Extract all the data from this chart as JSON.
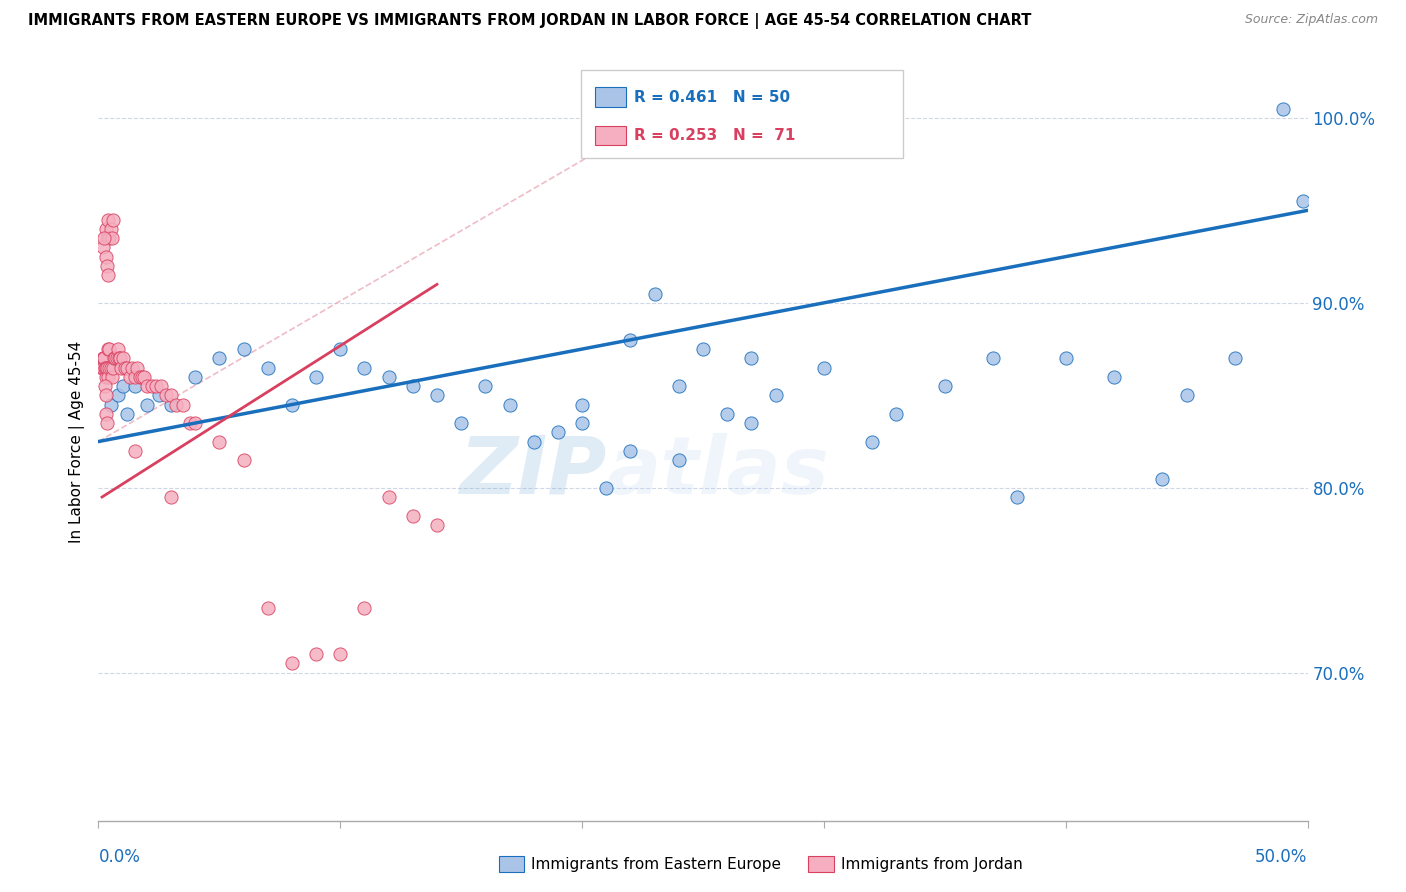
{
  "title": "IMMIGRANTS FROM EASTERN EUROPE VS IMMIGRANTS FROM JORDAN IN LABOR FORCE | AGE 45-54 CORRELATION CHART",
  "source": "Source: ZipAtlas.com",
  "ylabel": "In Labor Force | Age 45-54",
  "right_yticks": [
    70.0,
    80.0,
    90.0,
    100.0
  ],
  "legend_blue_r": "R = 0.461",
  "legend_blue_n": "N = 50",
  "legend_pink_r": "R = 0.253",
  "legend_pink_n": "N =  71",
  "blue_color": "#aac4e8",
  "pink_color": "#f5afc0",
  "trend_blue_color": "#1a6fbd",
  "trend_pink_color": "#d94060",
  "watermark_zip": "ZIP",
  "watermark_atlas": "atlas",
  "xlim": [
    0,
    50
  ],
  "ylim": [
    62,
    103
  ],
  "blue_scatter_x": [
    0.5,
    0.8,
    1.0,
    1.2,
    1.5,
    2.0,
    2.5,
    3.0,
    4.0,
    5.0,
    6.0,
    7.0,
    8.0,
    9.0,
    10.0,
    11.0,
    12.0,
    13.0,
    14.0,
    15.0,
    16.0,
    17.0,
    18.0,
    19.0,
    20.0,
    21.0,
    22.0,
    23.0,
    24.0,
    25.0,
    26.0,
    27.0,
    28.0,
    30.0,
    32.0,
    33.0,
    35.0,
    37.0,
    38.0,
    40.0,
    42.0,
    44.0,
    45.0,
    47.0,
    49.0,
    20.0,
    22.0,
    24.0,
    27.0,
    49.8
  ],
  "blue_scatter_y": [
    84.5,
    85.0,
    85.5,
    84.0,
    85.5,
    84.5,
    85.0,
    84.5,
    86.0,
    87.0,
    87.5,
    86.5,
    84.5,
    86.0,
    87.5,
    86.5,
    86.0,
    85.5,
    85.0,
    83.5,
    85.5,
    84.5,
    82.5,
    83.0,
    84.5,
    80.0,
    88.0,
    90.5,
    85.5,
    87.5,
    84.0,
    83.5,
    85.0,
    86.5,
    82.5,
    84.0,
    85.5,
    87.0,
    79.5,
    87.0,
    86.0,
    80.5,
    85.0,
    87.0,
    100.5,
    83.5,
    82.0,
    81.5,
    87.0,
    95.5
  ],
  "pink_scatter_x": [
    0.15,
    0.18,
    0.2,
    0.22,
    0.25,
    0.28,
    0.3,
    0.32,
    0.35,
    0.38,
    0.4,
    0.42,
    0.45,
    0.5,
    0.55,
    0.6,
    0.65,
    0.7,
    0.75,
    0.8,
    0.85,
    0.9,
    0.95,
    1.0,
    1.1,
    1.2,
    1.3,
    1.4,
    1.5,
    1.6,
    1.7,
    1.8,
    1.9,
    2.0,
    2.2,
    2.4,
    2.6,
    2.8,
    3.0,
    3.2,
    3.5,
    3.8,
    4.0,
    5.0,
    6.0,
    7.0,
    8.0,
    9.0,
    10.0,
    11.0,
    12.0,
    13.0,
    14.0,
    0.3,
    0.35,
    0.4,
    0.45,
    0.5,
    0.55,
    0.6,
    0.2,
    0.25,
    0.3,
    0.35,
    0.4,
    0.3,
    0.35,
    0.28,
    0.32,
    1.5,
    3.0
  ],
  "pink_scatter_y": [
    86.5,
    87.0,
    86.5,
    87.0,
    87.0,
    86.5,
    86.0,
    86.5,
    86.5,
    86.0,
    87.5,
    86.5,
    87.5,
    86.5,
    86.0,
    86.5,
    87.0,
    87.0,
    87.0,
    87.5,
    87.0,
    87.0,
    86.5,
    87.0,
    86.5,
    86.5,
    86.0,
    86.5,
    86.0,
    86.5,
    86.0,
    86.0,
    86.0,
    85.5,
    85.5,
    85.5,
    85.5,
    85.0,
    85.0,
    84.5,
    84.5,
    83.5,
    83.5,
    82.5,
    81.5,
    73.5,
    70.5,
    71.0,
    71.0,
    73.5,
    79.5,
    78.5,
    78.0,
    94.0,
    93.5,
    94.5,
    93.5,
    94.0,
    93.5,
    94.5,
    93.0,
    93.5,
    92.5,
    92.0,
    91.5,
    84.0,
    83.5,
    85.5,
    85.0,
    82.0,
    79.5
  ],
  "blue_trend_x": [
    0,
    50
  ],
  "blue_trend_y": [
    82.5,
    95.0
  ],
  "pink_trend_x": [
    0.15,
    14.0
  ],
  "pink_trend_y": [
    79.5,
    91.0
  ],
  "ref_line_x": [
    0,
    25
  ],
  "ref_line_y": [
    82.5,
    101.5
  ]
}
